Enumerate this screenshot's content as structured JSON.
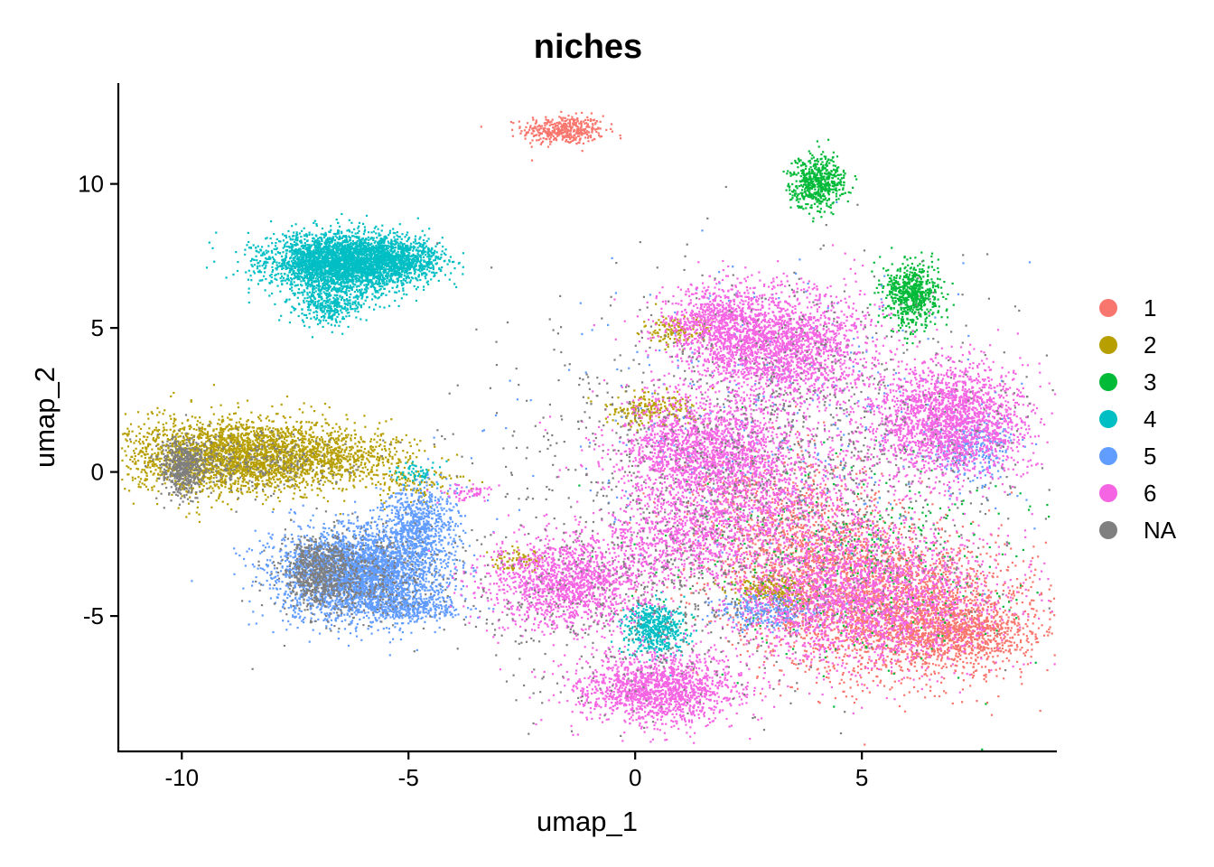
{
  "chart_data": {
    "type": "scatter",
    "title": "niches",
    "xlabel": "umap_1",
    "ylabel": "umap_2",
    "xlim": [
      -11.4,
      9.3
    ],
    "ylim": [
      -9.7,
      13.5
    ],
    "xticks": [
      -10,
      -5,
      0,
      5
    ],
    "yticks": [
      -5,
      0,
      5,
      10
    ],
    "grid": false,
    "legend_position": "right",
    "point_size_note": "dense cloud of tiny points, one colour per niche",
    "series": [
      {
        "name": "1",
        "color": "#F8766D",
        "clusters": [
          {
            "cx": -1.6,
            "cy": 11.9,
            "sx": 0.45,
            "sy": 0.25,
            "n": 420
          },
          {
            "cx": 5.8,
            "cy": -4.8,
            "sx": 1.5,
            "sy": 1.2,
            "n": 2200
          },
          {
            "cx": 4.0,
            "cy": -3.0,
            "sx": 1.2,
            "sy": 1.2,
            "n": 1100
          },
          {
            "cx": 7.2,
            "cy": -5.6,
            "sx": 0.8,
            "sy": 0.5,
            "n": 700
          },
          {
            "cx": 2.8,
            "cy": -1.0,
            "sx": 1.0,
            "sy": 1.0,
            "n": 300
          }
        ]
      },
      {
        "name": "2",
        "color": "#B79F00",
        "clusters": [
          {
            "cx": -8.8,
            "cy": 0.6,
            "sx": 1.2,
            "sy": 0.65,
            "n": 2600
          },
          {
            "cx": -6.4,
            "cy": 0.6,
            "sx": 0.8,
            "sy": 0.4,
            "n": 450
          },
          {
            "cx": -5.0,
            "cy": -0.3,
            "sx": 0.6,
            "sy": 0.3,
            "n": 120
          },
          {
            "cx": 0.3,
            "cy": 2.2,
            "sx": 0.5,
            "sy": 0.3,
            "n": 220
          },
          {
            "cx": 0.9,
            "cy": 4.9,
            "sx": 0.4,
            "sy": 0.25,
            "n": 150
          },
          {
            "cx": 3.0,
            "cy": -4.1,
            "sx": 0.4,
            "sy": 0.25,
            "n": 200
          },
          {
            "cx": -2.6,
            "cy": -3.1,
            "sx": 0.3,
            "sy": 0.2,
            "n": 80
          }
        ]
      },
      {
        "name": "3",
        "color": "#00BA38",
        "clusters": [
          {
            "cx": 4.0,
            "cy": 10.1,
            "sx": 0.3,
            "sy": 0.45,
            "n": 550
          },
          {
            "cx": 6.1,
            "cy": 6.2,
            "sx": 0.3,
            "sy": 0.55,
            "n": 650
          },
          {
            "cx": 5.0,
            "cy": -3.0,
            "sx": 2.0,
            "sy": 1.8,
            "n": 450
          }
        ]
      },
      {
        "name": "4",
        "color": "#00BFC4",
        "clusters": [
          {
            "cx": -6.5,
            "cy": 7.3,
            "sx": 0.8,
            "sy": 0.5,
            "n": 3200
          },
          {
            "cx": -5.2,
            "cy": 7.4,
            "sx": 0.5,
            "sy": 0.35,
            "n": 700
          },
          {
            "cx": -6.8,
            "cy": 5.9,
            "sx": 0.4,
            "sy": 0.4,
            "n": 400
          },
          {
            "cx": 0.4,
            "cy": -5.4,
            "sx": 0.35,
            "sy": 0.45,
            "n": 520
          },
          {
            "cx": -4.8,
            "cy": 0.0,
            "sx": 0.3,
            "sy": 0.2,
            "n": 60
          }
        ]
      },
      {
        "name": "5",
        "color": "#619CFF",
        "clusters": [
          {
            "cx": -6.1,
            "cy": -3.5,
            "sx": 0.9,
            "sy": 0.8,
            "n": 3300
          },
          {
            "cx": -4.8,
            "cy": -1.8,
            "sx": 0.4,
            "sy": 0.7,
            "n": 650
          },
          {
            "cx": -5.0,
            "cy": -4.7,
            "sx": 0.6,
            "sy": 0.2,
            "n": 300
          },
          {
            "cx": 7.4,
            "cy": 0.9,
            "sx": 0.5,
            "sy": 0.6,
            "n": 280
          },
          {
            "cx": 2.8,
            "cy": -4.8,
            "sx": 0.5,
            "sy": 0.3,
            "n": 250
          },
          {
            "cx": 3.0,
            "cy": 2.0,
            "sx": 2.5,
            "sy": 2.5,
            "n": 350
          }
        ]
      },
      {
        "name": "6",
        "color": "#F564E3",
        "clusters": [
          {
            "cx": 0.5,
            "cy": -7.5,
            "sx": 0.9,
            "sy": 0.6,
            "n": 1500
          },
          {
            "cx": 3.2,
            "cy": 4.4,
            "sx": 1.0,
            "sy": 1.0,
            "n": 2000
          },
          {
            "cx": 1.8,
            "cy": 5.2,
            "sx": 0.6,
            "sy": 0.6,
            "n": 700
          },
          {
            "cx": 6.9,
            "cy": 1.8,
            "sx": 0.9,
            "sy": 1.0,
            "n": 2100
          },
          {
            "cx": 1.5,
            "cy": 0.8,
            "sx": 1.0,
            "sy": 1.0,
            "n": 1800
          },
          {
            "cx": -1.5,
            "cy": -3.8,
            "sx": 0.9,
            "sy": 0.8,
            "n": 1500
          },
          {
            "cx": 1.0,
            "cy": -2.2,
            "sx": 0.8,
            "sy": 0.7,
            "n": 700
          },
          {
            "cx": 5.0,
            "cy": -4.3,
            "sx": 1.5,
            "sy": 1.2,
            "n": 2300
          },
          {
            "cx": 3.0,
            "cy": -1.0,
            "sx": 1.2,
            "sy": 1.2,
            "n": 1000
          },
          {
            "cx": -3.6,
            "cy": -0.7,
            "sx": 0.3,
            "sy": 0.15,
            "n": 60
          }
        ]
      },
      {
        "name": "NA",
        "color": "#7F7F7F",
        "clusters": [
          {
            "cx": -10.0,
            "cy": 0.2,
            "sx": 0.25,
            "sy": 0.5,
            "n": 500
          },
          {
            "cx": -7.0,
            "cy": -3.5,
            "sx": 0.4,
            "sy": 0.6,
            "n": 600
          },
          {
            "cx": -8.5,
            "cy": 0.4,
            "sx": 1.0,
            "sy": 0.6,
            "n": 250
          },
          {
            "cx": 3.0,
            "cy": 0.5,
            "sx": 3.0,
            "sy": 3.0,
            "n": 1300
          },
          {
            "cx": 0.0,
            "cy": -4.5,
            "sx": 2.0,
            "sy": 2.0,
            "n": 500
          },
          {
            "cx": -6.0,
            "cy": -3.5,
            "sx": 0.9,
            "sy": 0.8,
            "n": 400
          }
        ]
      }
    ]
  }
}
